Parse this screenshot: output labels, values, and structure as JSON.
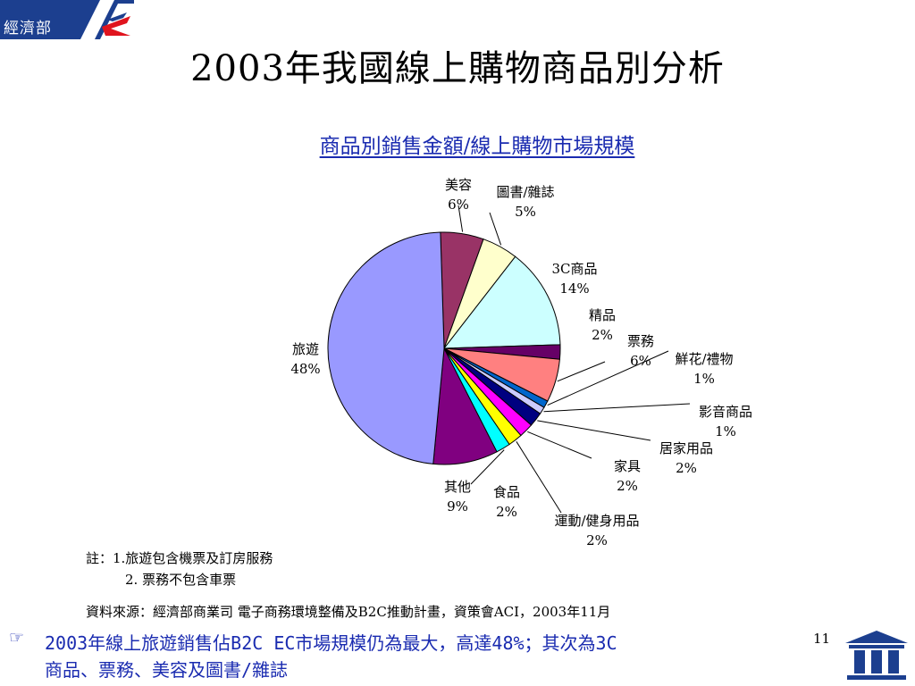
{
  "header": {
    "org": "經濟部",
    "title": "2003年我國線上購物商品別分析"
  },
  "chart_data": {
    "type": "pie",
    "title": "商品別銷售金額/線上購物市場規模",
    "slices": [
      {
        "label": "美容",
        "value": 6,
        "pct": "6%",
        "color": "#993366"
      },
      {
        "label": "圖書/雜誌",
        "value": 5,
        "pct": "5%",
        "color": "#ffffcc"
      },
      {
        "label": "3C商品",
        "value": 14,
        "pct": "14%",
        "color": "#ccffff"
      },
      {
        "label": "精品",
        "value": 2,
        "pct": "2%",
        "color": "#660066"
      },
      {
        "label": "票務",
        "value": 6,
        "pct": "6%",
        "color": "#ff8080"
      },
      {
        "label": "鮮花/禮物",
        "value": 1,
        "pct": "1%",
        "color": "#0066cc"
      },
      {
        "label": "影音商品",
        "value": 1,
        "pct": "1%",
        "color": "#ccccff"
      },
      {
        "label": "居家用品",
        "value": 2,
        "pct": "2%",
        "color": "#000080"
      },
      {
        "label": "家具",
        "value": 2,
        "pct": "2%",
        "color": "#ff00ff"
      },
      {
        "label": "運動/健身用品",
        "value": 2,
        "pct": "2%",
        "color": "#ffff00"
      },
      {
        "label": "食品",
        "value": 2,
        "pct": "2%",
        "color": "#00ffff"
      },
      {
        "label": "其他",
        "value": 9,
        "pct": "9%",
        "color": "#800080"
      },
      {
        "label": "旅遊",
        "value": 48,
        "pct": "48%",
        "color": "#9999ff"
      }
    ]
  },
  "notes": {
    "note1": "註：1.旅遊包含機票及訂房服務",
    "note2": "2. 票務不包含車票",
    "source": "資料來源：經濟部商業司 電子商務環境整備及B2C推動計畫，資策會ACI，2003年11月"
  },
  "summary": {
    "line1": "2003年線上旅遊銷售佔B2C EC市場規模仍為最大，高達48%；其次為3C",
    "line2": "商品、票務、美容及圖書/雜誌"
  },
  "page_number": "11",
  "icons": {
    "bullet": "pointing-hand-icon"
  }
}
